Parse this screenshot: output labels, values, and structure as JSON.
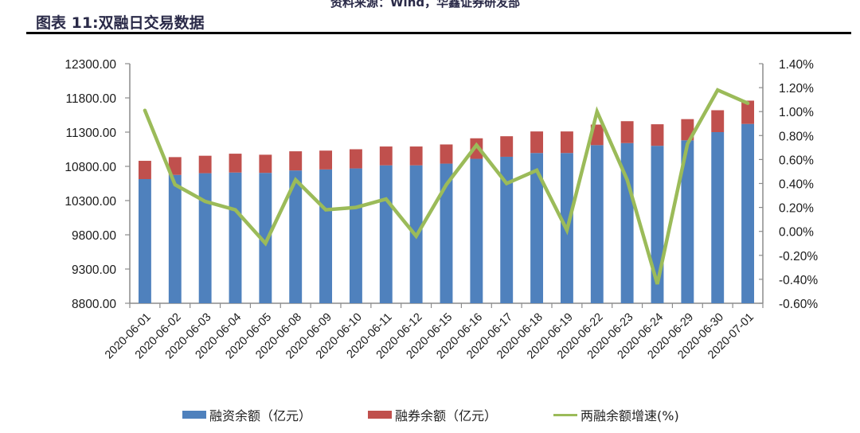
{
  "header": {
    "source_text": "资料来源：Wind，华鑫证券研发部",
    "figure_title": "图表 11:双融日交易数据"
  },
  "colors": {
    "financing": "#4F81BD",
    "securities_lending": "#C0504D",
    "growth_line": "#9BBB59",
    "axis": "#8c8c8c",
    "title_text": "#2a2a48"
  },
  "legend": {
    "items": [
      {
        "label": "融资余额（亿元）",
        "type": "bar",
        "color": "#4F81BD"
      },
      {
        "label": "融券余额（亿元）",
        "type": "bar",
        "color": "#C0504D"
      },
      {
        "label": "两融余额增速(%)",
        "type": "line",
        "color": "#9BBB59"
      }
    ]
  },
  "chart_data": {
    "type": "bar",
    "subtype": "stacked bar + line (dual axis)",
    "title": "图表 11:双融日交易数据",
    "xlabel": "",
    "ylabel": "",
    "y2label": "",
    "categories": [
      "2020-06-01",
      "2020-06-02",
      "2020-06-03",
      "2020-06-04",
      "2020-06-05",
      "2020-06-08",
      "2020-06-09",
      "2020-06-10",
      "2020-06-11",
      "2020-06-12",
      "2020-06-15",
      "2020-06-16",
      "2020-06-17",
      "2020-06-18",
      "2020-06-19",
      "2020-06-22",
      "2020-06-23",
      "2020-06-24",
      "2020-06-29",
      "2020-06-30",
      "2020-07-01"
    ],
    "series": [
      {
        "name": "融资余额（亿元）",
        "type": "bar",
        "stack": "total",
        "axis": "left",
        "values": [
          10614,
          10675,
          10700,
          10710,
          10705,
          10740,
          10755,
          10770,
          10815,
          10815,
          10840,
          10910,
          10940,
          10995,
          10995,
          11110,
          11140,
          11100,
          11180,
          11300,
          11420
        ]
      },
      {
        "name": "融券余额（亿元）",
        "type": "bar",
        "stack": "total",
        "axis": "left",
        "values": [
          267,
          260,
          255,
          275,
          265,
          280,
          275,
          280,
          275,
          275,
          280,
          300,
          300,
          315,
          315,
          300,
          320,
          315,
          310,
          320,
          340
        ]
      },
      {
        "name": "两融余额增速(%)",
        "type": "line",
        "axis": "right",
        "values": [
          1.01,
          0.39,
          0.25,
          0.18,
          -0.1,
          0.43,
          0.18,
          0.2,
          0.27,
          -0.04,
          0.39,
          0.72,
          0.4,
          0.51,
          0.01,
          1.0,
          0.43,
          -0.44,
          0.73,
          1.18,
          1.07
        ]
      }
    ],
    "ylim": [
      8800,
      12300
    ],
    "yticks": [
      "12300.00",
      "11800.00",
      "11300.00",
      "10800.00",
      "10300.00",
      "9800.00",
      "9300.00",
      "8800.00"
    ],
    "y2lim": [
      -0.6,
      1.4
    ],
    "y2ticks": [
      "1.40%",
      "1.20%",
      "1.00%",
      "0.80%",
      "0.60%",
      "0.40%",
      "0.20%",
      "0.00%",
      "-0.20%",
      "-0.40%",
      "-0.60%"
    ],
    "grid": false,
    "legend_position": "bottom"
  }
}
